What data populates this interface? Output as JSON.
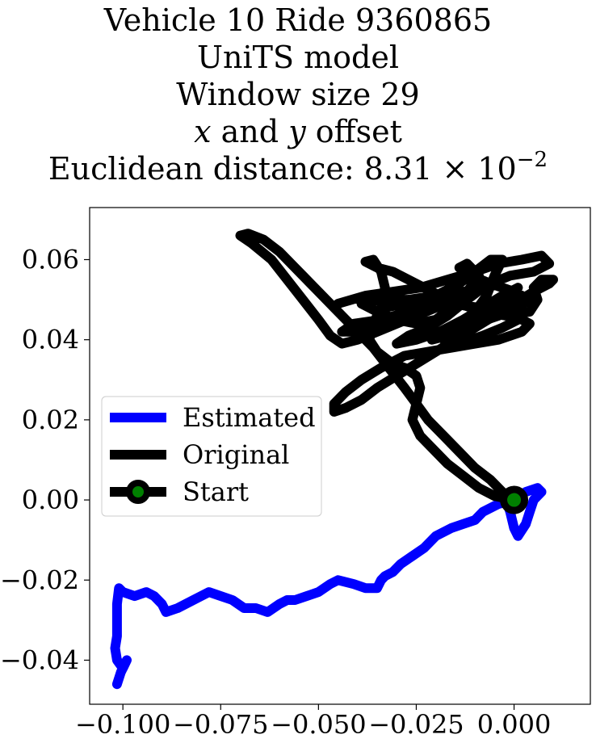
{
  "chart_data": {
    "type": "line",
    "title_lines": {
      "vehicle": "Vehicle 10 Ride 9360865",
      "model": "UniTS model",
      "window": "Window size 29",
      "offset_x": "x",
      "offset_and": "and",
      "offset_y": "y",
      "offset_tail": "offset",
      "distance_prefix": "Euclidean distance: 8.31 × 10",
      "distance_exp": "−2"
    },
    "xlim": [
      -0.1085,
      0.0195
    ],
    "ylim": [
      -0.051,
      0.073
    ],
    "xticks": [
      -0.1,
      -0.075,
      -0.05,
      -0.025,
      0.0
    ],
    "xtick_labels": [
      "−0.100",
      "−0.075",
      "−0.050",
      "−0.025",
      "0.000"
    ],
    "yticks": [
      -0.04,
      -0.02,
      0.0,
      0.02,
      0.04,
      0.06
    ],
    "ytick_labels": [
      "−0.04",
      "−0.02",
      "0.00",
      "0.02",
      "0.04",
      "0.06"
    ],
    "grid": false,
    "legend_position": "center-left",
    "legend": [
      {
        "label": "Estimated",
        "color": "#0000ff",
        "marker": false
      },
      {
        "label": "Original",
        "color": "#000000",
        "marker": false
      },
      {
        "label": "Start",
        "color": "#000000",
        "marker": true,
        "marker_color": "#008000"
      }
    ],
    "series": [
      {
        "name": "Estimated",
        "color": "#0000ff",
        "points": [
          [
            0.0,
            0.0
          ],
          [
            -0.004,
            -0.001
          ],
          [
            -0.008,
            -0.003
          ],
          [
            -0.01,
            -0.005
          ],
          [
            -0.013,
            -0.006
          ],
          [
            -0.016,
            -0.007
          ],
          [
            -0.02,
            -0.009
          ],
          [
            -0.023,
            -0.012
          ],
          [
            -0.026,
            -0.014
          ],
          [
            -0.029,
            -0.016
          ],
          [
            -0.031,
            -0.018
          ],
          [
            -0.033,
            -0.019
          ],
          [
            -0.034,
            -0.02
          ],
          [
            -0.035,
            -0.022
          ],
          [
            -0.036,
            -0.022
          ],
          [
            -0.038,
            -0.022
          ],
          [
            -0.041,
            -0.021
          ],
          [
            -0.045,
            -0.02
          ],
          [
            -0.047,
            -0.021
          ],
          [
            -0.05,
            -0.023
          ],
          [
            -0.053,
            -0.024
          ],
          [
            -0.056,
            -0.025
          ],
          [
            -0.058,
            -0.025
          ],
          [
            -0.06,
            -0.026
          ],
          [
            -0.063,
            -0.028
          ],
          [
            -0.066,
            -0.027
          ],
          [
            -0.069,
            -0.027
          ],
          [
            -0.072,
            -0.025
          ],
          [
            -0.075,
            -0.024
          ],
          [
            -0.078,
            -0.023
          ],
          [
            -0.082,
            -0.025
          ],
          [
            -0.086,
            -0.027
          ],
          [
            -0.089,
            -0.028
          ],
          [
            -0.09,
            -0.026
          ],
          [
            -0.092,
            -0.024
          ],
          [
            -0.094,
            -0.023
          ],
          [
            -0.097,
            -0.024
          ],
          [
            -0.1,
            -0.023
          ],
          [
            -0.101,
            -0.022
          ],
          [
            -0.1015,
            -0.026
          ],
          [
            -0.1015,
            -0.03
          ],
          [
            -0.1015,
            -0.034
          ],
          [
            -0.102,
            -0.037
          ],
          [
            -0.1015,
            -0.04
          ],
          [
            -0.1,
            -0.042
          ],
          [
            -0.099,
            -0.04
          ],
          [
            -0.1005,
            -0.043
          ],
          [
            -0.1015,
            -0.046
          ]
        ]
      },
      {
        "name": "Estimated-loop",
        "color": "#0000ff",
        "points": [
          [
            0.0,
            0.0
          ],
          [
            0.003,
            0.002
          ],
          [
            0.006,
            0.003
          ],
          [
            0.007,
            0.002
          ],
          [
            0.005,
            0.0
          ],
          [
            0.004,
            -0.003
          ],
          [
            0.003,
            -0.006
          ],
          [
            0.001,
            -0.009
          ],
          [
            0.0,
            -0.007
          ],
          [
            -0.001,
            -0.003
          ],
          [
            -0.002,
            0.0
          ],
          [
            0.0,
            0.0
          ]
        ]
      },
      {
        "name": "Original",
        "color": "#000000",
        "points": [
          [
            0.0,
            0.0
          ],
          [
            -0.003,
            0.002
          ],
          [
            -0.006,
            0.005
          ],
          [
            -0.01,
            0.008
          ],
          [
            -0.014,
            0.012
          ],
          [
            -0.018,
            0.016
          ],
          [
            -0.022,
            0.02
          ],
          [
            -0.025,
            0.024
          ],
          [
            -0.028,
            0.028
          ],
          [
            -0.032,
            0.033
          ],
          [
            -0.036,
            0.038
          ],
          [
            -0.041,
            0.043
          ],
          [
            -0.046,
            0.048
          ],
          [
            -0.051,
            0.053
          ],
          [
            -0.056,
            0.058
          ],
          [
            -0.06,
            0.062
          ],
          [
            -0.064,
            0.065
          ],
          [
            -0.068,
            0.0665
          ],
          [
            -0.07,
            0.066
          ],
          [
            -0.067,
            0.064
          ],
          [
            -0.062,
            0.06
          ],
          [
            -0.058,
            0.055
          ],
          [
            -0.054,
            0.05
          ],
          [
            -0.05,
            0.045
          ],
          [
            -0.047,
            0.041
          ],
          [
            -0.044,
            0.039
          ],
          [
            -0.04,
            0.04
          ],
          [
            -0.035,
            0.042
          ],
          [
            -0.03,
            0.044
          ],
          [
            -0.025,
            0.046
          ],
          [
            -0.02,
            0.048
          ],
          [
            -0.015,
            0.049
          ],
          [
            -0.01,
            0.048
          ],
          [
            -0.005,
            0.047
          ],
          [
            0.0,
            0.046
          ],
          [
            0.004,
            0.044
          ],
          [
            0.002,
            0.042
          ],
          [
            -0.004,
            0.04
          ],
          [
            -0.01,
            0.039
          ],
          [
            -0.016,
            0.038
          ],
          [
            -0.022,
            0.037
          ],
          [
            -0.028,
            0.036
          ],
          [
            -0.034,
            0.033
          ],
          [
            -0.039,
            0.03
          ],
          [
            -0.043,
            0.027
          ],
          [
            -0.046,
            0.024
          ],
          [
            -0.046,
            0.022
          ],
          [
            -0.043,
            0.023
          ],
          [
            -0.039,
            0.025
          ],
          [
            -0.035,
            0.028
          ],
          [
            -0.03,
            0.031
          ],
          [
            -0.025,
            0.034
          ],
          [
            -0.02,
            0.037
          ],
          [
            -0.015,
            0.04
          ],
          [
            -0.01,
            0.043
          ],
          [
            -0.005,
            0.046
          ],
          [
            0.0,
            0.049
          ],
          [
            0.005,
            0.052
          ],
          [
            0.009,
            0.054
          ],
          [
            0.01,
            0.055
          ],
          [
            0.007,
            0.055
          ],
          [
            0.005,
            0.053
          ],
          [
            0.006,
            0.05
          ],
          [
            0.004,
            0.047
          ],
          [
            -0.002,
            0.046
          ],
          [
            -0.008,
            0.047
          ],
          [
            -0.014,
            0.049
          ],
          [
            -0.019,
            0.051
          ],
          [
            -0.023,
            0.053
          ],
          [
            -0.027,
            0.055
          ],
          [
            -0.031,
            0.057
          ],
          [
            -0.035,
            0.058
          ],
          [
            -0.038,
            0.0595
          ],
          [
            -0.036,
            0.06
          ],
          [
            -0.034,
            0.057
          ],
          [
            -0.033,
            0.053
          ],
          [
            -0.034,
            0.048
          ],
          [
            -0.036,
            0.044
          ],
          [
            -0.037,
            0.04
          ],
          [
            -0.035,
            0.037
          ],
          [
            -0.031,
            0.034
          ],
          [
            -0.028,
            0.033
          ],
          [
            -0.025,
            0.031
          ],
          [
            -0.024,
            0.028
          ],
          [
            -0.025,
            0.024
          ],
          [
            -0.026,
            0.02
          ],
          [
            -0.024,
            0.016
          ],
          [
            -0.021,
            0.013
          ],
          [
            -0.017,
            0.009
          ],
          [
            -0.013,
            0.006
          ],
          [
            -0.009,
            0.003
          ],
          [
            -0.005,
            0.001
          ],
          [
            0.0,
            0.0
          ]
        ]
      },
      {
        "name": "Original-cluster",
        "color": "#000000",
        "points": [
          [
            -0.045,
            0.049
          ],
          [
            -0.038,
            0.051
          ],
          [
            -0.031,
            0.052
          ],
          [
            -0.024,
            0.053
          ],
          [
            -0.017,
            0.055
          ],
          [
            -0.01,
            0.057
          ],
          [
            -0.004,
            0.059
          ],
          [
            0.002,
            0.06
          ],
          [
            0.007,
            0.061
          ],
          [
            0.009,
            0.059
          ],
          [
            0.005,
            0.057
          ],
          [
            -0.001,
            0.056
          ],
          [
            -0.006,
            0.054
          ],
          [
            -0.011,
            0.052
          ],
          [
            -0.016,
            0.05
          ],
          [
            -0.021,
            0.048
          ],
          [
            -0.026,
            0.046
          ],
          [
            -0.031,
            0.044
          ],
          [
            -0.036,
            0.043
          ],
          [
            -0.041,
            0.042
          ],
          [
            -0.044,
            0.042
          ],
          [
            -0.041,
            0.044
          ],
          [
            -0.034,
            0.045
          ],
          [
            -0.027,
            0.047
          ],
          [
            -0.02,
            0.049
          ],
          [
            -0.013,
            0.052
          ],
          [
            -0.008,
            0.053
          ],
          [
            -0.012,
            0.05
          ],
          [
            -0.017,
            0.046
          ],
          [
            -0.022,
            0.043
          ],
          [
            -0.027,
            0.041
          ],
          [
            -0.03,
            0.039
          ],
          [
            -0.025,
            0.04
          ],
          [
            -0.019,
            0.042
          ],
          [
            -0.013,
            0.045
          ],
          [
            -0.008,
            0.048
          ],
          [
            -0.003,
            0.051
          ],
          [
            0.001,
            0.053
          ],
          [
            -0.002,
            0.05
          ],
          [
            -0.007,
            0.046
          ],
          [
            -0.012,
            0.043
          ],
          [
            -0.017,
            0.041
          ],
          [
            -0.021,
            0.04
          ],
          [
            -0.016,
            0.042
          ],
          [
            -0.01,
            0.044
          ],
          [
            -0.004,
            0.046
          ],
          [
            0.001,
            0.048
          ],
          [
            0.004,
            0.05
          ],
          [
            0.0,
            0.052
          ],
          [
            -0.006,
            0.054
          ],
          [
            -0.011,
            0.056
          ],
          [
            -0.014,
            0.058
          ],
          [
            -0.012,
            0.059
          ],
          [
            -0.009,
            0.056
          ],
          [
            -0.012,
            0.052
          ],
          [
            -0.016,
            0.048
          ],
          [
            -0.02,
            0.045
          ],
          [
            -0.025,
            0.044
          ],
          [
            -0.03,
            0.045
          ],
          [
            -0.035,
            0.047
          ],
          [
            -0.039,
            0.049
          ],
          [
            -0.034,
            0.05
          ],
          [
            -0.027,
            0.05
          ],
          [
            -0.02,
            0.051
          ],
          [
            -0.014,
            0.054
          ],
          [
            -0.01,
            0.057
          ],
          [
            -0.006,
            0.06
          ],
          [
            -0.003,
            0.06
          ],
          [
            -0.005,
            0.056
          ],
          [
            -0.007,
            0.051
          ],
          [
            -0.01,
            0.047
          ],
          [
            -0.014,
            0.043
          ],
          [
            -0.018,
            0.04
          ],
          [
            -0.014,
            0.039
          ],
          [
            -0.008,
            0.041
          ],
          [
            -0.003,
            0.043
          ],
          [
            0.001,
            0.045
          ],
          [
            -0.004,
            0.047
          ],
          [
            -0.009,
            0.048
          ],
          [
            -0.016,
            0.049
          ],
          [
            -0.022,
            0.05
          ],
          [
            -0.028,
            0.049
          ],
          [
            -0.033,
            0.048
          ]
        ]
      }
    ],
    "start_point": {
      "x": 0.0,
      "y": 0.0,
      "marker_color": "#008000",
      "edge_color": "#000000"
    }
  }
}
